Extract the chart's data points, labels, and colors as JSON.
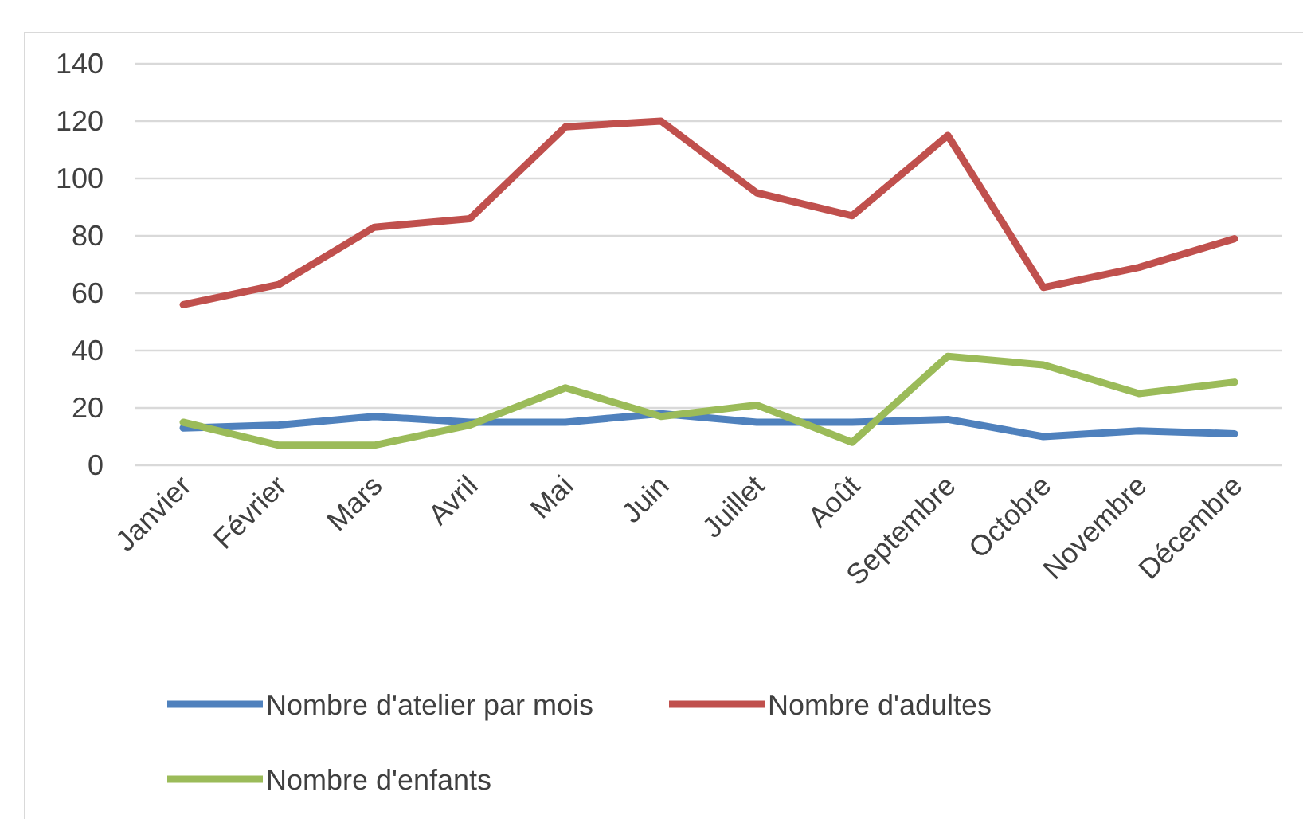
{
  "chart_data": {
    "type": "line",
    "categories": [
      "Janvier",
      "Février",
      "Mars",
      "Avril",
      "Mai",
      "Juin",
      "Juillet",
      "Août",
      "Septembre",
      "Octobre",
      "Novembre",
      "Décembre"
    ],
    "series": [
      {
        "name": "Nombre d'atelier par mois",
        "color": "#4f81bd",
        "values": [
          13,
          14,
          17,
          15,
          15,
          18,
          15,
          15,
          16,
          10,
          12,
          11
        ]
      },
      {
        "name": "Nombre d'adultes",
        "color": "#c0504d",
        "values": [
          56,
          63,
          83,
          86,
          118,
          120,
          95,
          87,
          115,
          62,
          69,
          79
        ]
      },
      {
        "name": "Nombre d'enfants",
        "color": "#9bbb59",
        "values": [
          15,
          7,
          7,
          14,
          27,
          17,
          21,
          8,
          38,
          35,
          25,
          29
        ]
      }
    ],
    "ylim": [
      0,
      140
    ],
    "yticks": [
      0,
      20,
      40,
      60,
      80,
      100,
      120,
      140
    ],
    "grid": "y",
    "legend": "bottom",
    "marker": "none",
    "line_style": "solid"
  }
}
